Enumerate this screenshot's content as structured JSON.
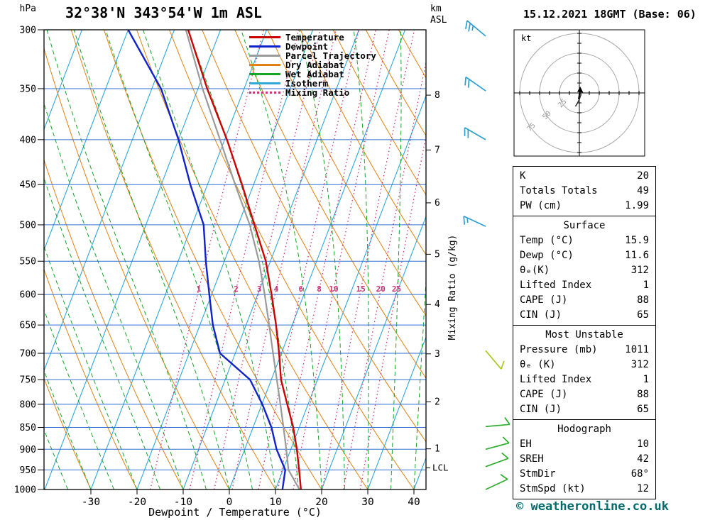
{
  "header": {
    "title": "32°38'N 343°54'W 1m ASL",
    "datetime": "15.12.2021 18GMT (Base: 06)"
  },
  "legend": [
    {
      "label": "Temperature",
      "color": "#cc0000",
      "style": "solid"
    },
    {
      "label": "Dewpoint",
      "color": "#1122cc",
      "style": "solid"
    },
    {
      "label": "Parcel Trajectory",
      "color": "#9a9a9a",
      "style": "solid"
    },
    {
      "label": "Dry Adiabat",
      "color": "#e08214",
      "style": "solid"
    },
    {
      "label": "Wet Adiabat",
      "color": "#18a428",
      "style": "solid"
    },
    {
      "label": "Isotherm",
      "color": "#2fa8d8",
      "style": "solid"
    },
    {
      "label": "Mixing Ratio",
      "color": "#cc3377",
      "style": "dotted"
    }
  ],
  "colors": {
    "temperature": "#cc0000",
    "dewpoint": "#1122cc",
    "parcel": "#9a9a9a",
    "dry_adiabat": "#e08214",
    "wet_adiabat": "#18a428",
    "isotherm": "#2fa8d8",
    "mixing_ratio": "#cc3377",
    "pressure_line": "#2f6fd0",
    "frame": "#000000",
    "copyright": "#006b6b"
  },
  "chart_data": {
    "type": "skewt-logp",
    "pressure_axis": {
      "unit": "hPa",
      "log": true,
      "range": [
        300,
        1000
      ],
      "ticks": [
        300,
        350,
        400,
        450,
        500,
        550,
        600,
        650,
        700,
        750,
        800,
        850,
        900,
        950,
        1000
      ]
    },
    "temp_axis": {
      "unit": "°C",
      "label": "Dewpoint / Temperature (°C)",
      "ticks": [
        -30,
        -20,
        -10,
        0,
        10,
        20,
        30,
        40
      ]
    },
    "km_axis": {
      "label_line1": "km",
      "label_line2": "ASL",
      "ticks": [
        {
          "km": 1,
          "p": 899
        },
        {
          "km": 2,
          "p": 795
        },
        {
          "km": 3,
          "p": 701
        },
        {
          "km": 4,
          "p": 616
        },
        {
          "km": 5,
          "p": 540
        },
        {
          "km": 6,
          "p": 472
        },
        {
          "km": 7,
          "p": 411
        },
        {
          "km": 8,
          "p": 356
        }
      ]
    },
    "mixing_axis_label": "Mixing Ratio (g/kg)",
    "mixing_ratio_values": [
      1,
      2,
      3,
      4,
      6,
      8,
      10,
      15,
      20,
      25
    ],
    "lcl": {
      "label": "LCL",
      "pressure": 945
    },
    "sounding": {
      "temperature": [
        [
          1011,
          15.9
        ],
        [
          1000,
          15.5
        ],
        [
          950,
          13.5
        ],
        [
          900,
          11.3
        ],
        [
          850,
          8.7
        ],
        [
          800,
          5.5
        ],
        [
          750,
          2.1
        ],
        [
          700,
          -0.5
        ],
        [
          650,
          -3.5
        ],
        [
          600,
          -7.0
        ],
        [
          550,
          -11.0
        ],
        [
          500,
          -16.5
        ],
        [
          450,
          -22.5
        ],
        [
          400,
          -29.5
        ],
        [
          350,
          -38.0
        ],
        [
          300,
          -47.0
        ]
      ],
      "dewpoint": [
        [
          1011,
          11.6
        ],
        [
          1000,
          11.5
        ],
        [
          950,
          10.5
        ],
        [
          900,
          6.9
        ],
        [
          850,
          4.0
        ],
        [
          800,
          0.1
        ],
        [
          750,
          -4.6
        ],
        [
          700,
          -13.3
        ],
        [
          650,
          -17.2
        ],
        [
          600,
          -20.5
        ],
        [
          550,
          -24.0
        ],
        [
          500,
          -27.5
        ],
        [
          450,
          -33.7
        ],
        [
          400,
          -40.0
        ],
        [
          350,
          -48.0
        ],
        [
          300,
          -60.0
        ]
      ],
      "parcel": [
        [
          1011,
          15.9
        ],
        [
          1000,
          15.2
        ],
        [
          950,
          11.2
        ],
        [
          900,
          9.0
        ],
        [
          850,
          6.6
        ],
        [
          800,
          4.0
        ],
        [
          750,
          1.2
        ],
        [
          700,
          -1.8
        ],
        [
          650,
          -5.0
        ],
        [
          600,
          -8.5
        ],
        [
          550,
          -12.5
        ],
        [
          500,
          -17.5
        ],
        [
          450,
          -24.0
        ],
        [
          400,
          -31.0
        ],
        [
          350,
          -39.0
        ],
        [
          300,
          -47.5
        ]
      ]
    },
    "winds": [
      {
        "p": 305,
        "dir": 310,
        "speed": 25,
        "color": "#2b9fd4"
      },
      {
        "p": 352,
        "dir": 305,
        "speed": 20,
        "color": "#2b9fd4"
      },
      {
        "p": 400,
        "dir": 300,
        "speed": 20,
        "color": "#2b9fd4"
      },
      {
        "p": 502,
        "dir": 295,
        "speed": 15,
        "color": "#2b9fd4"
      },
      {
        "p": 695,
        "dir": 140,
        "speed": 10,
        "color": "#a8c820"
      },
      {
        "p": 848,
        "dir": 85,
        "speed": 10,
        "color": "#2fae2f"
      },
      {
        "p": 900,
        "dir": 75,
        "speed": 10,
        "color": "#2fae2f"
      },
      {
        "p": 942,
        "dir": 70,
        "speed": 12,
        "color": "#2fae2f"
      },
      {
        "p": 1000,
        "dir": 65,
        "speed": 10,
        "color": "#2fae2f"
      }
    ]
  },
  "hodograph": {
    "unit": "kt",
    "rings": [
      25,
      50,
      75
    ],
    "trace": [
      [
        1,
        4
      ],
      [
        2,
        -2
      ],
      [
        0,
        -8
      ],
      [
        -2.5,
        -13
      ],
      [
        -5,
        -17
      ]
    ]
  },
  "tables": [
    {
      "rows": [
        [
          "K",
          "20"
        ],
        [
          "Totals Totals",
          "49"
        ],
        [
          "PW (cm)",
          "1.99"
        ]
      ]
    },
    {
      "title": "Surface",
      "rows": [
        [
          "Temp (°C)",
          "15.9"
        ],
        [
          "Dewp (°C)",
          "11.6"
        ],
        [
          "θₑ(K)",
          "312"
        ],
        [
          "Lifted Index",
          "1"
        ],
        [
          "CAPE (J)",
          "88"
        ],
        [
          "CIN (J)",
          "65"
        ]
      ]
    },
    {
      "title": "Most Unstable",
      "rows": [
        [
          "Pressure (mb)",
          "1011"
        ],
        [
          "θₑ (K)",
          "312"
        ],
        [
          "Lifted Index",
          "1"
        ],
        [
          "CAPE (J)",
          "88"
        ],
        [
          "CIN (J)",
          "65"
        ]
      ]
    },
    {
      "title": "Hodograph",
      "rows": [
        [
          "EH",
          "10"
        ],
        [
          "SREH",
          "42"
        ],
        [
          "StmDir",
          "68°"
        ],
        [
          "StmSpd (kt)",
          "12"
        ]
      ]
    }
  ],
  "copyright": "© weatheronline.co.uk"
}
